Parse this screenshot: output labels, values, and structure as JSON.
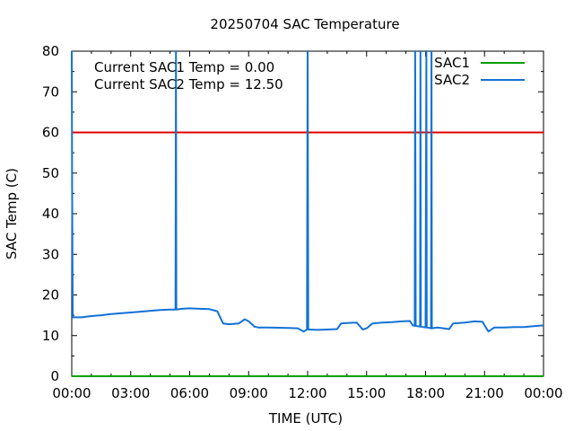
{
  "chart_data": {
    "type": "line",
    "title": "20250704 SAC Temperature",
    "xlabel": "TIME (UTC)",
    "ylabel": "SAC Temp (C)",
    "xlim": [
      0,
      24
    ],
    "ylim": [
      0,
      80
    ],
    "x_tick_labels": [
      "00:00",
      "03:00",
      "06:00",
      "09:00",
      "12:00",
      "15:00",
      "18:00",
      "21:00",
      "00:00"
    ],
    "y_tick_labels": [
      "0",
      "10",
      "20",
      "30",
      "40",
      "50",
      "60",
      "70",
      "80"
    ],
    "grid": false,
    "legend_position": "top-right",
    "threshold": {
      "value": 60,
      "color": "#e00000"
    },
    "annotations": [
      "Current SAC1 Temp = 0.00",
      "Current SAC2 Temp = 12.50"
    ],
    "series": [
      {
        "name": "SAC1",
        "color": "#00a000",
        "points": [
          [
            0,
            0
          ],
          [
            24,
            0
          ]
        ]
      },
      {
        "name": "SAC2",
        "color": "#1272d6",
        "points": [
          [
            0.0,
            80
          ],
          [
            0.02,
            47
          ],
          [
            0.05,
            14.5
          ],
          [
            0.5,
            14.5
          ],
          [
            1.0,
            14.8
          ],
          [
            1.5,
            15.0
          ],
          [
            2.0,
            15.3
          ],
          [
            2.5,
            15.5
          ],
          [
            3.0,
            15.7
          ],
          [
            3.5,
            15.9
          ],
          [
            4.0,
            16.1
          ],
          [
            4.5,
            16.3
          ],
          [
            5.0,
            16.4
          ],
          [
            5.28,
            16.4
          ],
          [
            5.3,
            80
          ],
          [
            5.32,
            16.4
          ],
          [
            5.6,
            16.6
          ],
          [
            6.0,
            16.7
          ],
          [
            6.5,
            16.6
          ],
          [
            7.0,
            16.5
          ],
          [
            7.4,
            16.0
          ],
          [
            7.7,
            13.0
          ],
          [
            8.0,
            12.8
          ],
          [
            8.5,
            13.0
          ],
          [
            8.8,
            14.0
          ],
          [
            9.0,
            13.5
          ],
          [
            9.3,
            12.2
          ],
          [
            9.5,
            12.0
          ],
          [
            10.0,
            12.0
          ],
          [
            11.0,
            11.9
          ],
          [
            11.5,
            11.8
          ],
          [
            11.8,
            11.0
          ],
          [
            11.97,
            11.5
          ],
          [
            12.0,
            80
          ],
          [
            12.03,
            11.5
          ],
          [
            12.5,
            11.4
          ],
          [
            13.0,
            11.5
          ],
          [
            13.5,
            11.6
          ],
          [
            13.7,
            13.0
          ],
          [
            14.0,
            13.1
          ],
          [
            14.5,
            13.2
          ],
          [
            14.8,
            11.5
          ],
          [
            15.0,
            11.8
          ],
          [
            15.3,
            13.0
          ],
          [
            15.8,
            13.2
          ],
          [
            16.3,
            13.3
          ],
          [
            16.8,
            13.5
          ],
          [
            17.2,
            13.6
          ],
          [
            17.35,
            12.5
          ],
          [
            17.45,
            12.4
          ],
          [
            17.47,
            80
          ],
          [
            17.5,
            12.4
          ],
          [
            17.6,
            12.3
          ],
          [
            17.72,
            12.2
          ],
          [
            17.74,
            80
          ],
          [
            17.76,
            12.2
          ],
          [
            18.0,
            12.0
          ],
          [
            18.04,
            80
          ],
          [
            18.06,
            12.0
          ],
          [
            18.2,
            11.9
          ],
          [
            18.28,
            11.8
          ],
          [
            18.3,
            80
          ],
          [
            18.32,
            11.8
          ],
          [
            18.6,
            12.0
          ],
          [
            18.9,
            11.8
          ],
          [
            19.2,
            11.6
          ],
          [
            19.4,
            13.0
          ],
          [
            20.0,
            13.2
          ],
          [
            20.5,
            13.5
          ],
          [
            20.9,
            13.4
          ],
          [
            21.0,
            12.5
          ],
          [
            21.2,
            11.0
          ],
          [
            21.5,
            12.0
          ],
          [
            22.0,
            12.0
          ],
          [
            22.5,
            12.1
          ],
          [
            23.0,
            12.1
          ],
          [
            23.5,
            12.3
          ],
          [
            24.0,
            12.5
          ]
        ]
      }
    ]
  }
}
